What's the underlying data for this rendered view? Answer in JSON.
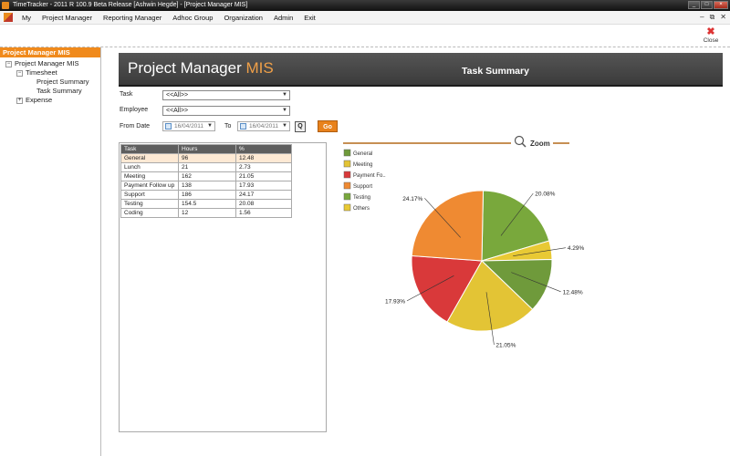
{
  "window": {
    "title": "TimeTracker - 2011 R 100.9 Beta Release  [Ashwin Hegde] - [Project Manager MIS]",
    "btn_min": "_",
    "btn_max": "□",
    "btn_close": "×"
  },
  "menu": {
    "items": [
      "My",
      "Project Manager",
      "Reporting Manager",
      "Adhoc Group",
      "Organization",
      "Admin",
      "Exit"
    ],
    "mdi_min": "–",
    "mdi_restore": "⧉",
    "mdi_close": "✕"
  },
  "toolbar": {
    "close_label": "Close",
    "close_glyph": "✖"
  },
  "sidebar": {
    "header": "Project Manager MIS",
    "root": "Project Manager MIS",
    "timesheet": "Timesheet",
    "project_summary": "Project Summary",
    "task_summary": "Task Summary",
    "expense": "Expense",
    "toggle_open": "−",
    "toggle_closed": "+"
  },
  "banner": {
    "title_main": "Project Manager ",
    "title_accent": "MIS",
    "subtitle": "Task Summary"
  },
  "filters": {
    "task_label": "Task",
    "task_value": "<<All>>",
    "employee_label": "Employee",
    "employee_value": "<<All>>",
    "from_label": "From Date",
    "from_value": "16/04/2011",
    "to_label": "To",
    "to_value": "16/04/2011",
    "q_label": "Q",
    "go_label": "Go"
  },
  "grid": {
    "headers": [
      "Task",
      "Hours",
      "%"
    ],
    "rows": [
      [
        "General",
        "96",
        "12.48"
      ],
      [
        "Lunch",
        "21",
        "2.73"
      ],
      [
        "Meeting",
        "162",
        "21.05"
      ],
      [
        "Payment Follow up",
        "138",
        "17.93"
      ],
      [
        "Support",
        "186",
        "24.17"
      ],
      [
        "Testing",
        "154.5",
        "20.08"
      ],
      [
        "Coding",
        "12",
        "1.56"
      ]
    ]
  },
  "chart_data": {
    "type": "pie",
    "zoom_label": "Zoom",
    "legend": [
      "General",
      "Meeting",
      "Payment Fo..",
      "Support",
      "Testing",
      "Others"
    ],
    "series": [
      {
        "name": "Testing",
        "value": 20.08,
        "label": "20.08%",
        "color": "#79a83c"
      },
      {
        "name": "Others",
        "value": 4.29,
        "label": "4.29%",
        "color": "#e8c934"
      },
      {
        "name": "General",
        "value": 12.48,
        "label": "12.48%",
        "color": "#6f9a3b"
      },
      {
        "name": "Meeting",
        "value": 21.05,
        "label": "21.05%",
        "color": "#e3c435"
      },
      {
        "name": "Payment Follow up",
        "value": 17.93,
        "label": "17.93%",
        "color": "#d9393a"
      },
      {
        "name": "Support",
        "value": 24.17,
        "label": "24.17%",
        "color": "#ef8a32"
      }
    ],
    "legend_colors": [
      "#6f9a3b",
      "#e3c435",
      "#d9393a",
      "#ef8a32",
      "#79a83c",
      "#e8c934"
    ]
  }
}
